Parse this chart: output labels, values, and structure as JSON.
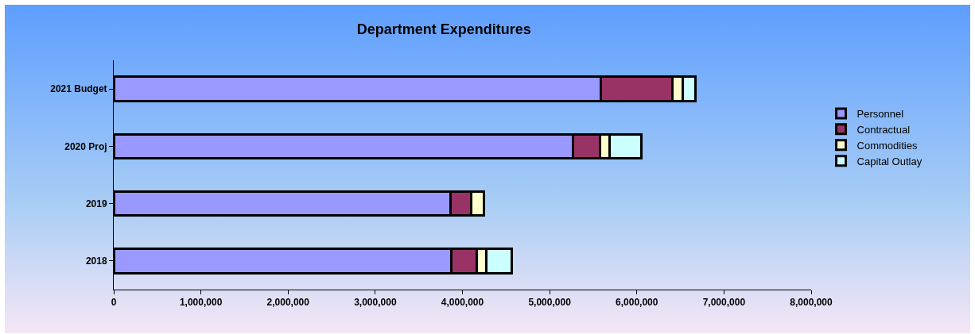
{
  "chart_data": {
    "type": "bar",
    "title": "Department Expenditures",
    "orientation": "horizontal",
    "stacked": true,
    "categories": [
      "2021 Budget",
      "2020 Proj",
      "2019",
      "2018"
    ],
    "series": [
      {
        "name": "Personnel",
        "color": "#9999ff",
        "values": [
          5590000,
          5270000,
          3860000,
          3870000
        ]
      },
      {
        "name": "Contractual",
        "color": "#993366",
        "values": [
          820000,
          310000,
          240000,
          290000
        ]
      },
      {
        "name": "Commodities",
        "color": "#ffffcc",
        "values": [
          120000,
          110000,
          150000,
          110000
        ]
      },
      {
        "name": "Capital Outlay",
        "color": "#ccffff",
        "values": [
          140000,
          360000,
          null,
          300000
        ]
      }
    ],
    "xlim": [
      0,
      8000000
    ],
    "xticks": [
      0,
      {
        "value": 1000000,
        "label": "1,000,000"
      },
      {
        "value": 2000000,
        "label": "2,000,000"
      },
      {
        "value": 3000000,
        "label": "3,000,000"
      },
      {
        "value": 4000000,
        "label": "4,000,000"
      },
      {
        "value": 5000000,
        "label": "5,000,000"
      },
      {
        "value": 6000000,
        "label": "6,000,000"
      },
      {
        "value": 7000000,
        "label": "7,000,000"
      },
      {
        "value": 8000000,
        "label": "8,000,000"
      }
    ],
    "grid": false,
    "legend": "right"
  }
}
